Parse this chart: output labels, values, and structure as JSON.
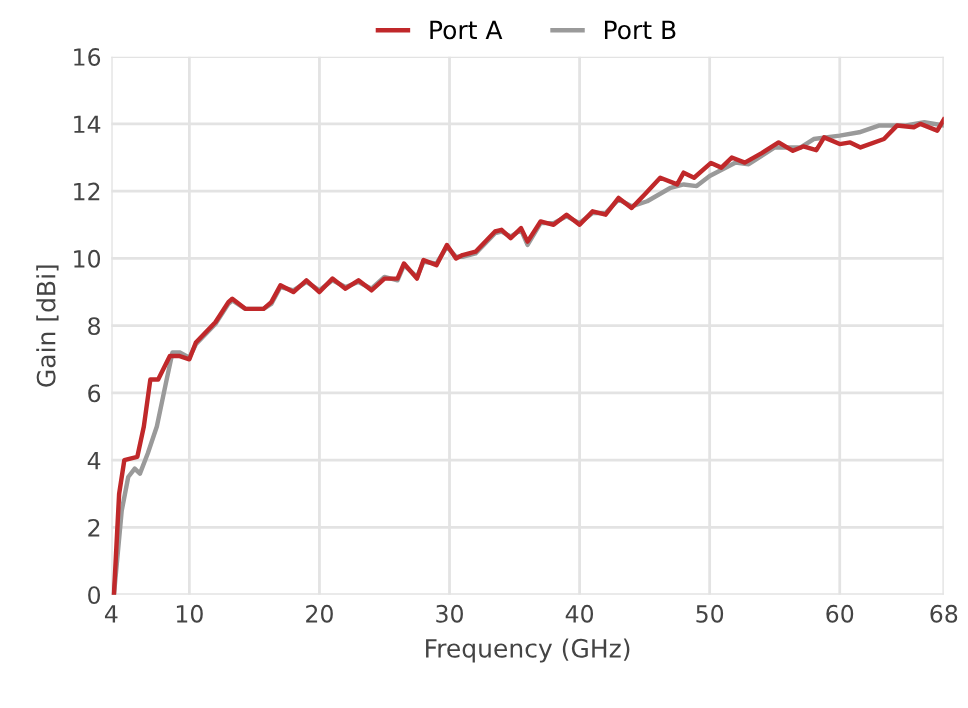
{
  "chart_data": {
    "type": "line",
    "xlabel": "Frequency (GHz)",
    "ylabel": "Gain [dBi]",
    "xlim": [
      4,
      68
    ],
    "xticks": [
      4,
      10,
      20,
      30,
      40,
      50,
      60,
      68
    ],
    "ylim": [
      0,
      16
    ],
    "yticks": [
      0,
      2,
      4,
      6,
      8,
      10,
      12,
      14,
      16
    ],
    "grid": true,
    "legend": "top",
    "line_style": "solid",
    "marker": "none",
    "series": [
      {
        "name": "Port A",
        "color": "#c0282a",
        "x": [
          4.2,
          4.6,
          5,
          6,
          6.5,
          7,
          7.6,
          8.5,
          9.2,
          10,
          10.5,
          12,
          13,
          13.3,
          14.3,
          15.7,
          16.3,
          17,
          18,
          19,
          20,
          21,
          22,
          23,
          24,
          25,
          26,
          26.5,
          27.5,
          28,
          29,
          29.8,
          30.5,
          31,
          32,
          33,
          33.5,
          34,
          34.7,
          35.5,
          36,
          37,
          38,
          39,
          40,
          41,
          42,
          43,
          44,
          45,
          46.2,
          47.5,
          48,
          48.8,
          50.1,
          50.9,
          51.7,
          52.7,
          54,
          55.3,
          56.4,
          57.2,
          58.2,
          58.8,
          60,
          60.8,
          61.6,
          63.4,
          64.4,
          65.7,
          66.2,
          67.5,
          68
        ],
        "values": [
          0,
          3,
          4,
          4.1,
          5,
          6.4,
          6.4,
          7.1,
          7.1,
          7,
          7.5,
          8.1,
          8.7,
          8.8,
          8.5,
          8.5,
          8.7,
          9.2,
          9,
          9.35,
          9,
          9.4,
          9.1,
          9.35,
          9.05,
          9.4,
          9.4,
          9.85,
          9.4,
          9.95,
          9.8,
          10.4,
          10,
          10.1,
          10.2,
          10.6,
          10.8,
          10.85,
          10.6,
          10.9,
          10.5,
          11.1,
          11,
          11.3,
          11,
          11.4,
          11.3,
          11.8,
          11.5,
          11.9,
          12.4,
          12.2,
          12.55,
          12.4,
          12.84,
          12.7,
          13,
          12.85,
          13.13,
          13.45,
          13.2,
          13.33,
          13.22,
          13.6,
          13.4,
          13.45,
          13.3,
          13.55,
          13.95,
          13.9,
          14,
          13.8,
          14.13
        ]
      },
      {
        "name": "Port B",
        "color": "#9a9a9a",
        "x": [
          4.2,
          4.8,
          5.3,
          5.8,
          6.2,
          6.8,
          7.5,
          8.2,
          8.7,
          9.3,
          10,
          10.5,
          12,
          13,
          13.3,
          14.3,
          15.7,
          16.3,
          17,
          18,
          19,
          20,
          21,
          22,
          23,
          24,
          25,
          26,
          26.5,
          27.5,
          28,
          29,
          29.8,
          30.5,
          31,
          32,
          33,
          33.5,
          34,
          34.7,
          35.5,
          36,
          37,
          38,
          39,
          40,
          41,
          42,
          43,
          44,
          45.2,
          47,
          48,
          49,
          50,
          52,
          53,
          55,
          57,
          58,
          60,
          61.5,
          63,
          65,
          66.5,
          68
        ],
        "values": [
          0,
          2.5,
          3.5,
          3.75,
          3.6,
          4.2,
          5,
          6.3,
          7.2,
          7.2,
          7.05,
          7.45,
          8.05,
          8.65,
          8.75,
          8.5,
          8.5,
          8.65,
          9.15,
          9.05,
          9.3,
          9.05,
          9.35,
          9.15,
          9.3,
          9.1,
          9.45,
          9.35,
          9.8,
          9.45,
          9.9,
          9.85,
          10.35,
          10.05,
          10.05,
          10.15,
          10.55,
          10.75,
          10.8,
          10.65,
          10.85,
          10.4,
          11.05,
          11.05,
          11.25,
          11.05,
          11.35,
          11.35,
          11.75,
          11.55,
          11.7,
          12.1,
          12.2,
          12.15,
          12.45,
          12.85,
          12.8,
          13.3,
          13.3,
          13.55,
          13.65,
          13.75,
          13.95,
          13.95,
          14.05,
          13.95
        ]
      }
    ]
  }
}
